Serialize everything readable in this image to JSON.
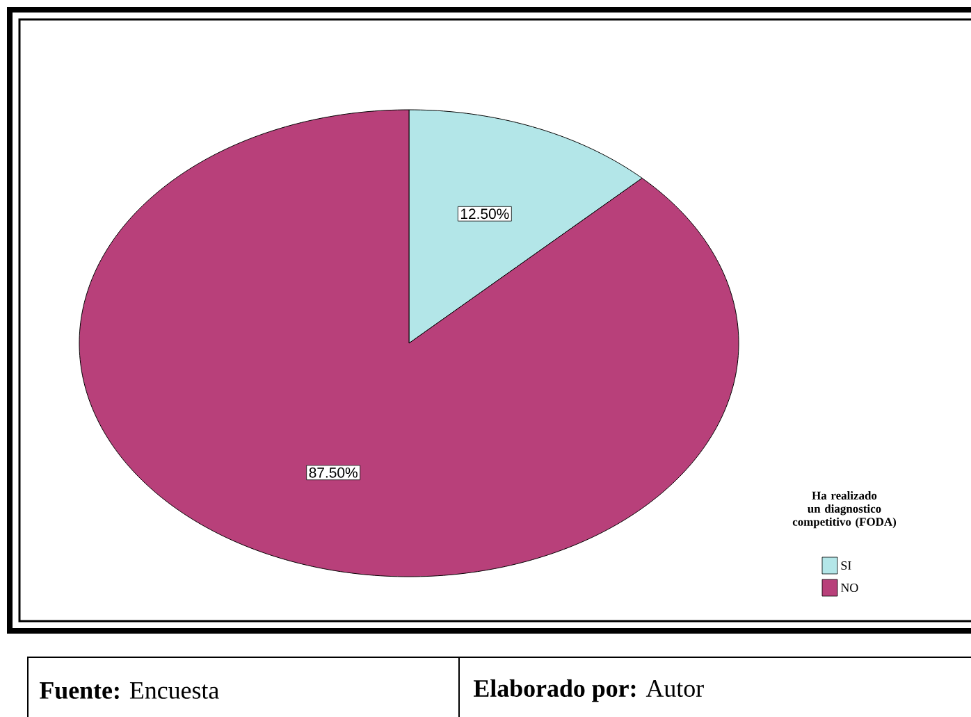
{
  "chart_data": {
    "type": "pie",
    "legend_title": "Ha realizado un diagnostico competitivo (FODA)",
    "categories": [
      "SI",
      "NO"
    ],
    "values": [
      12.5,
      87.5
    ],
    "colors": [
      "#b3e6e8",
      "#b8407a"
    ],
    "value_labels": [
      "12.50%",
      "87.50%"
    ],
    "legend": "bottom right",
    "annotations": [
      "**Fuente:** Encuesta",
      "**Elaborado por:** Autor"
    ]
  }
}
